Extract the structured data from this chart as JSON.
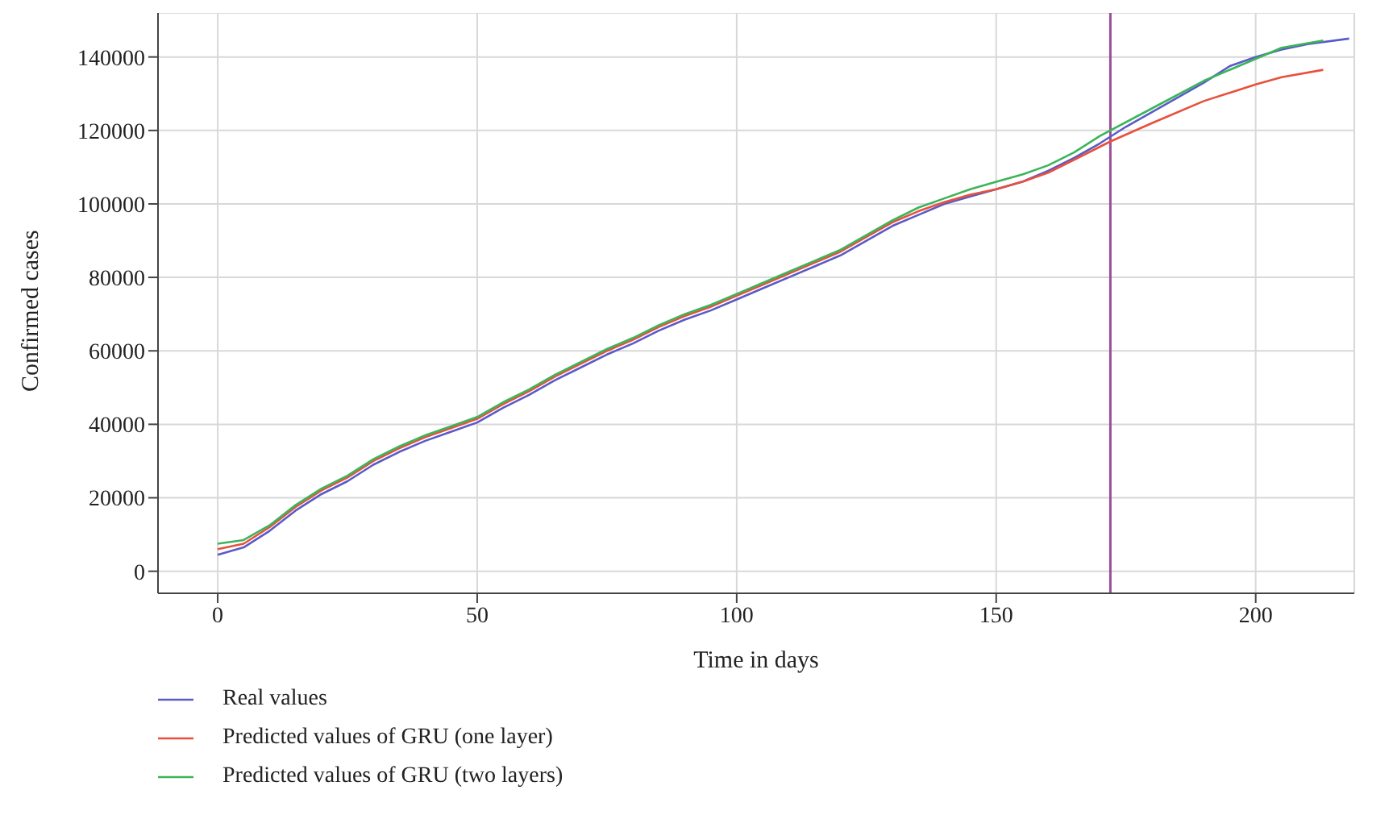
{
  "chart_data": {
    "type": "line",
    "xlabel": "Time in days",
    "ylabel": "Confirmed cases",
    "xlim": [
      -11.5,
      219
    ],
    "xticks": [
      0,
      50,
      100,
      150,
      200
    ],
    "ylim": [
      -6000,
      152000
    ],
    "yticks": [
      0,
      20000,
      40000,
      60000,
      80000,
      100000,
      120000,
      140000
    ],
    "grid": true,
    "legend": "bottom",
    "marker": "none",
    "line_style": "solid",
    "ref_lines": [
      {
        "axis": "x",
        "value": 172,
        "color": "#9b4f96"
      }
    ],
    "series": [
      {
        "name": "Real values",
        "color": "#5a5ac8",
        "x": [
          0,
          5,
          10,
          15,
          20,
          25,
          30,
          35,
          40,
          45,
          50,
          55,
          60,
          65,
          70,
          75,
          80,
          85,
          90,
          95,
          100,
          105,
          110,
          115,
          120,
          125,
          130,
          135,
          140,
          145,
          150,
          155,
          160,
          165,
          170,
          175,
          180,
          185,
          190,
          195,
          200,
          205,
          210,
          218
        ],
        "values": [
          4500,
          6500,
          11000,
          16500,
          21000,
          24500,
          29000,
          32500,
          35500,
          38000,
          40500,
          44500,
          48000,
          52000,
          55500,
          59000,
          62000,
          65500,
          68500,
          71000,
          74000,
          77000,
          80000,
          83000,
          86000,
          90000,
          94000,
          97000,
          100000,
          102000,
          104000,
          106000,
          109000,
          112500,
          116500,
          121000,
          125000,
          129000,
          133000,
          137500,
          140000,
          142000,
          143500,
          145000
        ]
      },
      {
        "name": "Predicted values of GRU (one layer)",
        "color": "#e8503c",
        "x": [
          0,
          5,
          10,
          15,
          20,
          25,
          30,
          35,
          40,
          45,
          50,
          55,
          60,
          65,
          70,
          75,
          80,
          85,
          90,
          95,
          100,
          105,
          110,
          115,
          120,
          125,
          130,
          135,
          140,
          145,
          150,
          155,
          160,
          165,
          172,
          180,
          190,
          200,
          205,
          213
        ],
        "values": [
          6000,
          7500,
          12000,
          17500,
          22000,
          25500,
          30000,
          33500,
          36500,
          39000,
          41500,
          45500,
          49000,
          53000,
          56500,
          60000,
          63000,
          66500,
          69500,
          72000,
          75000,
          78000,
          81000,
          84000,
          87000,
          91000,
          95000,
          98000,
          100500,
          102500,
          104000,
          106000,
          108500,
          112000,
          117000,
          122000,
          128000,
          132500,
          134500,
          136500
        ]
      },
      {
        "name": "Predicted values of GRU (two layers)",
        "color": "#3cb45a",
        "x": [
          0,
          5,
          10,
          15,
          20,
          25,
          30,
          35,
          40,
          45,
          50,
          55,
          60,
          65,
          70,
          75,
          80,
          85,
          90,
          95,
          100,
          105,
          110,
          115,
          120,
          125,
          130,
          135,
          140,
          145,
          150,
          155,
          160,
          165,
          170,
          180,
          190,
          200,
          205,
          213
        ],
        "values": [
          7500,
          8500,
          12500,
          18000,
          22500,
          26000,
          30500,
          34000,
          37000,
          39500,
          42000,
          46000,
          49500,
          53500,
          57000,
          60500,
          63500,
          67000,
          70000,
          72500,
          75500,
          78500,
          81500,
          84500,
          87500,
          91500,
          95500,
          99000,
          101500,
          104000,
          106000,
          108000,
          110500,
          114000,
          118500,
          126000,
          133500,
          139500,
          142500,
          144500
        ]
      }
    ]
  }
}
